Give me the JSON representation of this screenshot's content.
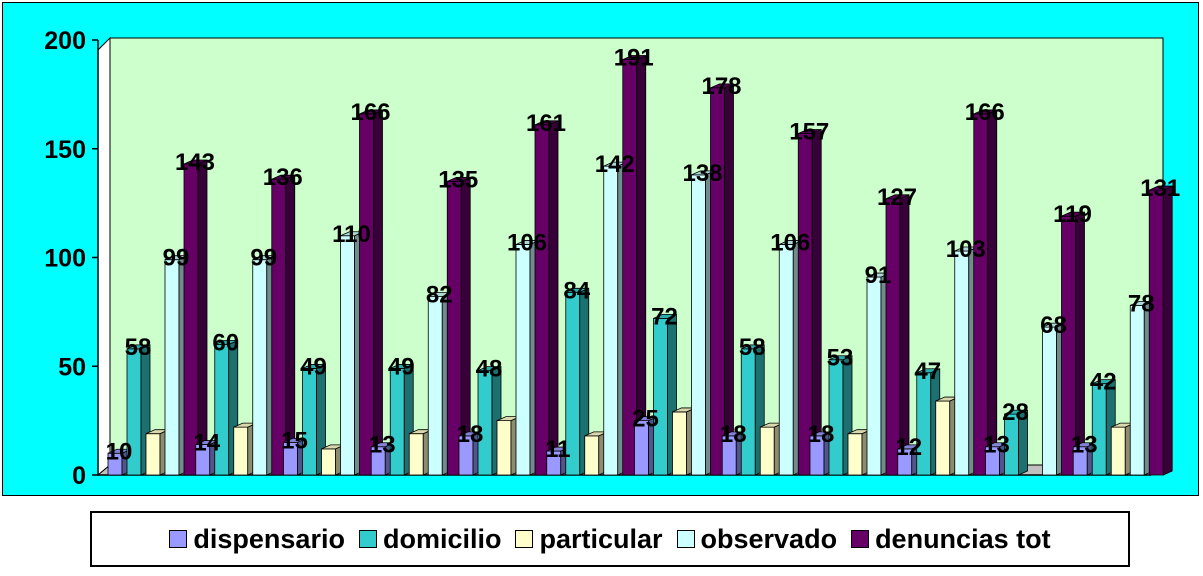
{
  "chart_data": {
    "type": "bar",
    "categories": [
      "",
      "",
      "",
      "",
      "",
      "",
      "",
      "",
      "",
      "",
      "",
      ""
    ],
    "series": [
      {
        "name": "dispensario",
        "color": "#9999ff",
        "values": [
          10,
          14,
          15,
          13,
          18,
          11,
          25,
          18,
          18,
          12,
          13,
          13
        ]
      },
      {
        "name": "domicilio",
        "color": "#33cccc",
        "values": [
          58,
          60,
          49,
          49,
          48,
          84,
          72,
          58,
          53,
          47,
          28,
          42
        ]
      },
      {
        "name": "particular",
        "color": "#ffffcc",
        "values": [
          19,
          22,
          12,
          19,
          25,
          18,
          29,
          22,
          19,
          34,
          0,
          22
        ]
      },
      {
        "name": "observado",
        "color": "#ccffff",
        "values": [
          99,
          99,
          110,
          82,
          106,
          142,
          138,
          106,
          91,
          103,
          68,
          78
        ]
      },
      {
        "name": "denuncias tot",
        "color": "#660066",
        "values": [
          143,
          136,
          166,
          135,
          161,
          191,
          178,
          157,
          127,
          166,
          119,
          131
        ]
      }
    ],
    "data_labels": [
      {
        "series": 0,
        "values": [
          "10",
          "14",
          "15",
          "13",
          "18",
          "11",
          "25",
          "18",
          "18",
          "12",
          "13",
          "13"
        ]
      },
      {
        "series": 1,
        "values": [
          "58",
          "60",
          "49",
          "49",
          "48",
          "84",
          "72",
          "58",
          "53",
          "47",
          "28",
          "42"
        ]
      },
      {
        "series": 2,
        "values": [
          "",
          "",
          "",
          "",
          "",
          "",
          "",
          "",
          "",
          "",
          "",
          ""
        ]
      },
      {
        "series": 3,
        "values": [
          "99",
          "99",
          "110",
          "82",
          "106",
          "142",
          "138",
          "106",
          "91",
          "103",
          "68",
          "78"
        ]
      },
      {
        "series": 4,
        "values": [
          "143",
          "136",
          "166",
          "135",
          "161",
          "191",
          "178",
          "157",
          "127",
          "166",
          "119",
          "131"
        ]
      }
    ],
    "yticks": [
      "0",
      "50",
      "100",
      "150",
      "200"
    ],
    "ylim": [
      0,
      200
    ],
    "legend_position": "bottom",
    "grid": false,
    "colors": {
      "frame": "#00ffff",
      "plot": "#ccffcc",
      "floor": "#c0c0c0"
    }
  }
}
